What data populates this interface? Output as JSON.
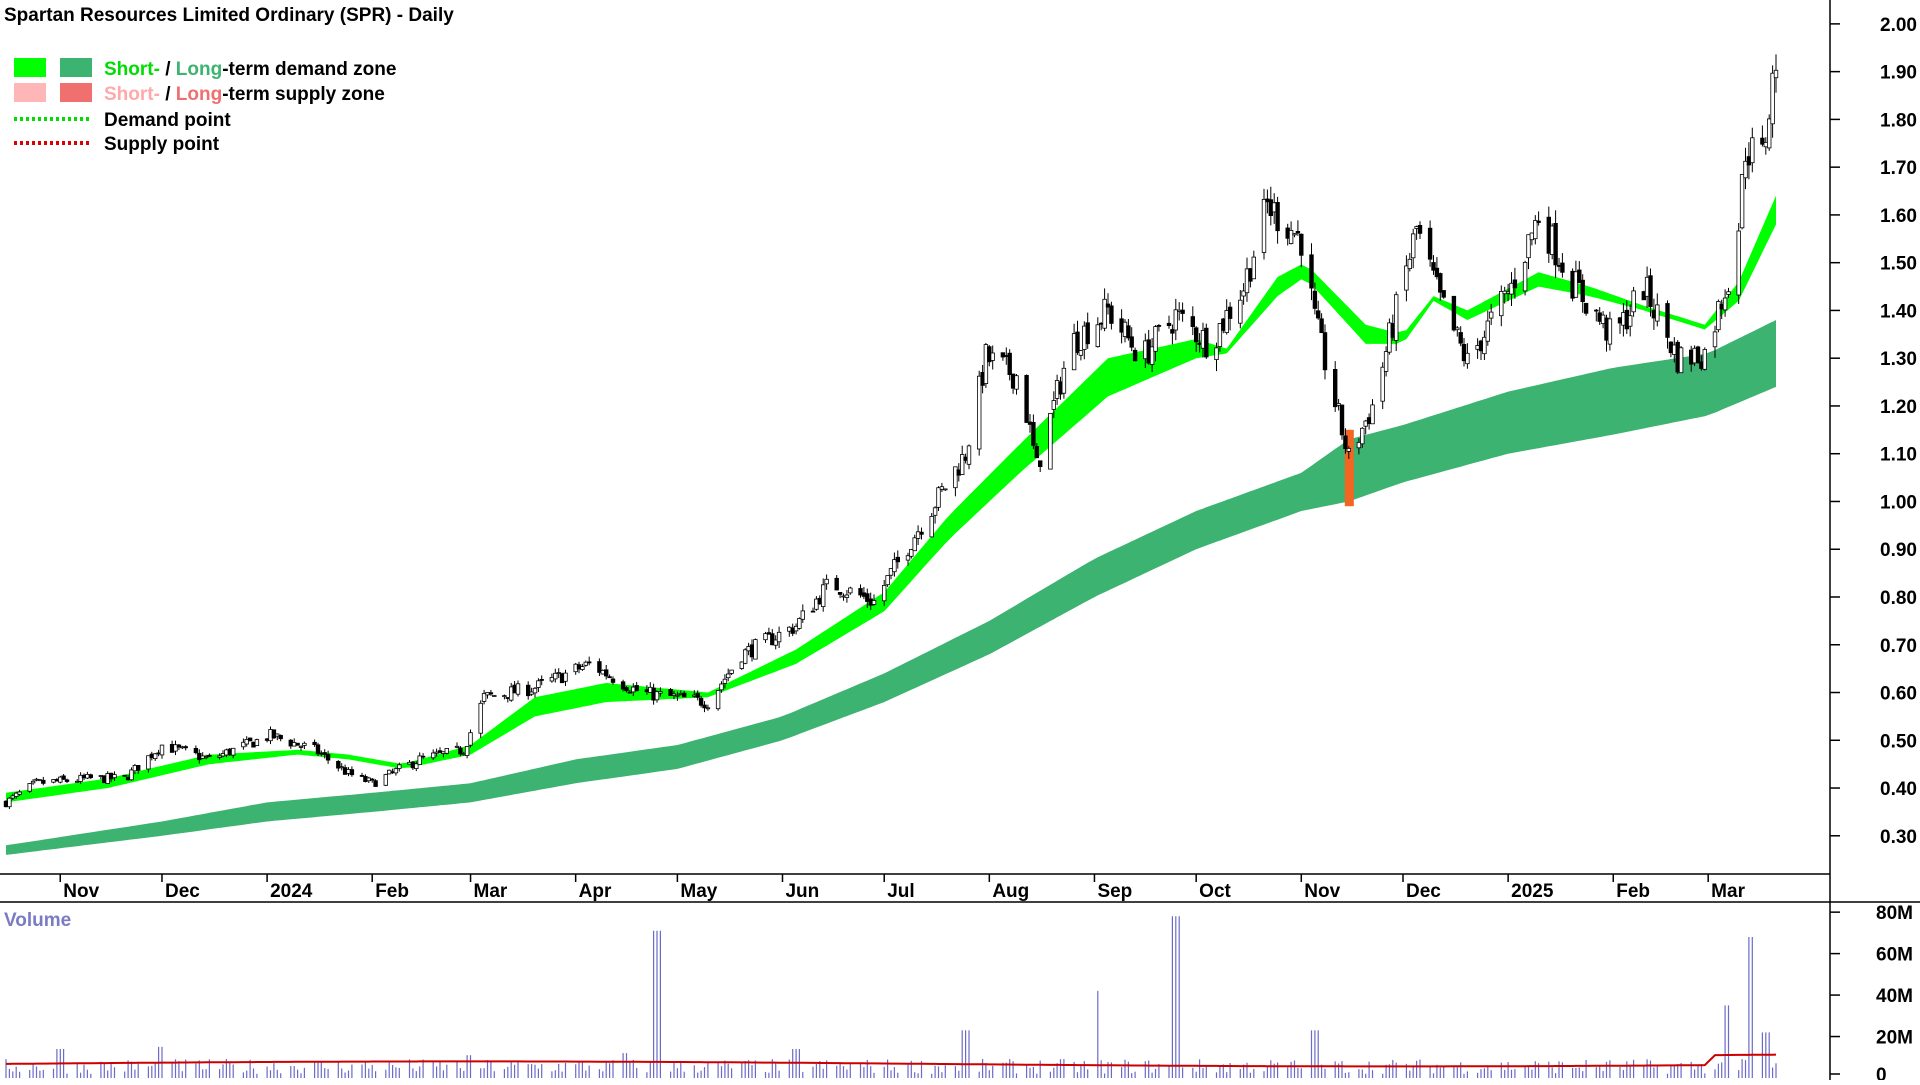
{
  "title": "Spartan Resources Limited Ordinary (SPR) - Daily",
  "legend": {
    "demand_short": "Short-",
    "demand_sep": " / ",
    "demand_long": "Long",
    "demand_rest": "-term demand zone",
    "supply_short": "Short-",
    "supply_sep": " / ",
    "supply_long": "Long",
    "supply_rest": "-term supply zone",
    "demand_point": "Demand point",
    "supply_point": "Supply point"
  },
  "colors": {
    "short_demand": "#00ff00",
    "long_demand": "#3cb371",
    "short_supply": "#ffb6b6",
    "long_supply": "#f07070",
    "flip_orange": "#f26522",
    "demand_point": "#00dd00",
    "supply_point": "#dd0000",
    "volume_bar": "#6a6ac8",
    "volume_avg": "#cc0000",
    "volume_label": "#7b7bc4"
  },
  "chart_data": {
    "type": "candlestick",
    "title": "Spartan Resources Limited Ordinary (SPR) - Daily",
    "ylim": [
      0.22,
      2.05
    ],
    "yticks": [
      2.0,
      1.9,
      1.8,
      1.7,
      1.6,
      1.5,
      1.4,
      1.3,
      1.2,
      1.1,
      1.0,
      0.9,
      0.8,
      0.7,
      0.6,
      0.5,
      0.4,
      0.3
    ],
    "ytick_labels": [
      "2.00",
      "1.90",
      "1.80",
      "1.70",
      "1.60",
      "1.50",
      "1.40",
      "1.30",
      "1.20",
      "1.10",
      "1.00",
      "0.90",
      "0.80",
      "0.70",
      "0.60",
      "0.50",
      "0.40",
      "0.30"
    ],
    "months": [
      {
        "label": "Nov",
        "date": "2023-11-01"
      },
      {
        "label": "Dec",
        "date": "2023-12-01"
      },
      {
        "label": "2024",
        "date": "2024-01-01"
      },
      {
        "label": "Feb",
        "date": "2024-02-01"
      },
      {
        "label": "Mar",
        "date": "2024-03-01"
      },
      {
        "label": "Apr",
        "date": "2024-04-01"
      },
      {
        "label": "May",
        "date": "2024-05-01"
      },
      {
        "label": "Jun",
        "date": "2024-06-01"
      },
      {
        "label": "Jul",
        "date": "2024-07-01"
      },
      {
        "label": "Aug",
        "date": "2024-08-01"
      },
      {
        "label": "Sep",
        "date": "2024-09-01"
      },
      {
        "label": "Oct",
        "date": "2024-10-01"
      },
      {
        "label": "Nov",
        "date": "2024-11-01"
      },
      {
        "label": "Dec",
        "date": "2024-12-01"
      },
      {
        "label": "2025",
        "date": "2025-01-01"
      },
      {
        "label": "Feb",
        "date": "2025-02-01"
      },
      {
        "label": "Mar",
        "date": "2025-03-01"
      }
    ],
    "date_range": [
      "2023-10-16",
      "2025-03-21"
    ],
    "price_path": [
      [
        "2023-10-16",
        0.37
      ],
      [
        "2023-10-25",
        0.41
      ],
      [
        "2023-11-10",
        0.42
      ],
      [
        "2023-11-20",
        0.42
      ],
      [
        "2023-12-01",
        0.49
      ],
      [
        "2023-12-15",
        0.46
      ],
      [
        "2024-01-02",
        0.51
      ],
      [
        "2024-01-15",
        0.48
      ],
      [
        "2024-01-25",
        0.43
      ],
      [
        "2024-02-01",
        0.41
      ],
      [
        "2024-02-15",
        0.46
      ],
      [
        "2024-02-28",
        0.48
      ],
      [
        "2024-03-05",
        0.59
      ],
      [
        "2024-03-20",
        0.61
      ],
      [
        "2024-04-05",
        0.66
      ],
      [
        "2024-04-20",
        0.6
      ],
      [
        "2024-05-10",
        0.58
      ],
      [
        "2024-05-20",
        0.68
      ],
      [
        "2024-06-05",
        0.74
      ],
      [
        "2024-06-15",
        0.83
      ],
      [
        "2024-06-28",
        0.79
      ],
      [
        "2024-07-10",
        0.93
      ],
      [
        "2024-07-25",
        1.1
      ],
      [
        "2024-07-31",
        1.3
      ],
      [
        "2024-08-10",
        1.26
      ],
      [
        "2024-08-15",
        1.07
      ],
      [
        "2024-08-25",
        1.33
      ],
      [
        "2024-09-05",
        1.4
      ],
      [
        "2024-09-15",
        1.3
      ],
      [
        "2024-09-25",
        1.39
      ],
      [
        "2024-10-05",
        1.33
      ],
      [
        "2024-10-15",
        1.45
      ],
      [
        "2024-10-22",
        1.62
      ],
      [
        "2024-11-01",
        1.55
      ],
      [
        "2024-11-05",
        1.38
      ],
      [
        "2024-11-15",
        1.09
      ],
      [
        "2024-11-22",
        1.2
      ],
      [
        "2024-12-05",
        1.57
      ],
      [
        "2024-12-12",
        1.42
      ],
      [
        "2024-12-20",
        1.29
      ],
      [
        "2025-01-02",
        1.45
      ],
      [
        "2025-01-10",
        1.6
      ],
      [
        "2025-01-20",
        1.46
      ],
      [
        "2025-02-01",
        1.34
      ],
      [
        "2025-02-10",
        1.45
      ],
      [
        "2025-02-20",
        1.3
      ],
      [
        "2025-02-28",
        1.31
      ],
      [
        "2025-03-07",
        1.47
      ],
      [
        "2025-03-10",
        1.58
      ],
      [
        "2025-03-12",
        1.74
      ],
      [
        "2025-03-17",
        1.72
      ],
      [
        "2025-03-19",
        1.82
      ],
      [
        "2025-03-21",
        1.93
      ]
    ],
    "short_term_zone": [
      [
        "2023-10-16",
        0.37,
        0.39
      ],
      [
        "2023-11-15",
        0.4,
        0.42
      ],
      [
        "2023-12-15",
        0.45,
        0.47
      ],
      [
        "2024-01-10",
        0.47,
        0.48
      ],
      [
        "2024-01-25",
        0.46,
        0.47
      ],
      [
        "2024-02-10",
        0.44,
        0.45
      ],
      [
        "2024-03-01",
        0.47,
        0.49
      ],
      [
        "2024-03-20",
        0.55,
        0.59
      ],
      [
        "2024-04-10",
        0.58,
        0.62
      ],
      [
        "2024-05-10",
        0.59,
        0.6
      ],
      [
        "2024-06-05",
        0.66,
        0.69
      ],
      [
        "2024-07-01",
        0.77,
        0.81
      ],
      [
        "2024-07-20",
        0.92,
        0.97
      ],
      [
        "2024-08-10",
        1.06,
        1.12
      ],
      [
        "2024-09-05",
        1.22,
        1.3
      ],
      [
        "2024-10-01",
        1.3,
        1.34
      ],
      [
        "2024-10-10",
        1.31,
        1.32
      ],
      [
        "2024-10-25",
        1.43,
        1.47
      ],
      [
        "2024-11-02",
        1.47,
        1.5
      ],
      [
        "2024-11-20",
        1.33,
        1.37
      ],
      [
        "2024-12-01",
        1.33,
        1.35
      ],
      [
        "2024-12-10",
        1.42,
        1.43
      ],
      [
        "2024-12-20",
        1.38,
        1.4
      ],
      [
        "2025-01-10",
        1.45,
        1.48
      ],
      [
        "2025-01-25",
        1.43,
        1.45
      ],
      [
        "2025-02-10",
        1.4,
        1.41
      ],
      [
        "2025-02-28",
        1.36,
        1.37
      ],
      [
        "2025-03-10",
        1.42,
        1.46
      ],
      [
        "2025-03-21",
        1.58,
        1.64
      ]
    ],
    "long_term_zone": [
      [
        "2023-10-16",
        0.26,
        0.28
      ],
      [
        "2023-12-01",
        0.3,
        0.33
      ],
      [
        "2024-01-01",
        0.33,
        0.37
      ],
      [
        "2024-02-01",
        0.35,
        0.39
      ],
      [
        "2024-03-01",
        0.37,
        0.41
      ],
      [
        "2024-04-01",
        0.41,
        0.46
      ],
      [
        "2024-05-01",
        0.44,
        0.49
      ],
      [
        "2024-06-01",
        0.5,
        0.55
      ],
      [
        "2024-07-01",
        0.58,
        0.64
      ],
      [
        "2024-08-01",
        0.68,
        0.75
      ],
      [
        "2024-09-01",
        0.8,
        0.88
      ],
      [
        "2024-10-01",
        0.9,
        0.98
      ],
      [
        "2024-11-01",
        0.98,
        1.06
      ],
      [
        "2024-11-15",
        1.0,
        1.13
      ],
      [
        "2024-12-01",
        1.04,
        1.16
      ],
      [
        "2025-01-01",
        1.1,
        1.23
      ],
      [
        "2025-02-01",
        1.14,
        1.28
      ],
      [
        "2025-03-01",
        1.18,
        1.31
      ],
      [
        "2025-03-21",
        1.24,
        1.38
      ]
    ],
    "flip_bars": [
      {
        "date": "2024-11-15",
        "low": 0.99,
        "high": 1.15
      }
    ],
    "volume": {
      "label": "Volume",
      "ylim": [
        0,
        82000000
      ],
      "yticks": [
        80000000,
        60000000,
        40000000,
        20000000,
        0
      ],
      "ytick_labels": [
        "80M",
        "60M",
        "40M",
        "20M",
        "0"
      ],
      "spikes": [
        [
          "2023-11-01",
          14000000
        ],
        [
          "2023-12-01",
          15000000
        ],
        [
          "2024-03-01",
          11000000
        ],
        [
          "2024-04-15",
          12000000
        ],
        [
          "2024-04-25",
          71000000
        ],
        [
          "2024-06-05",
          14000000
        ],
        [
          "2024-07-25",
          23000000
        ],
        [
          "2024-09-01",
          42000000
        ],
        [
          "2024-09-25",
          78000000
        ],
        [
          "2024-11-05",
          23000000
        ],
        [
          "2025-03-07",
          35000000
        ],
        [
          "2025-03-14",
          68000000
        ],
        [
          "2025-03-18",
          22000000
        ]
      ],
      "average_level": 8000000
    }
  }
}
